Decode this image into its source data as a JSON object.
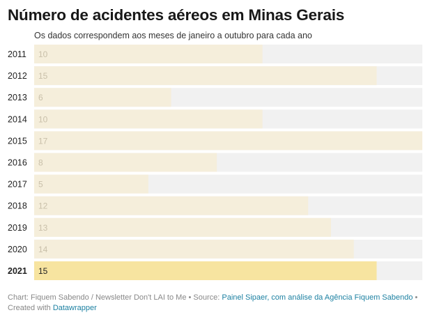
{
  "title": "Número de acidentes aéreos em Minas Gerais",
  "subtitle": "Os dados correspondem aos meses de janeiro a outubro para cada ano",
  "colors": {
    "track": "#f1f1f1",
    "bar": "#f5eedb",
    "bar_highlight": "#f7e4a0",
    "value_text": "#c9c0aa",
    "value_text_highlight": "#222222",
    "link": "#1d81a2"
  },
  "chart_data": {
    "type": "bar",
    "orientation": "horizontal",
    "categories": [
      "2011",
      "2012",
      "2013",
      "2014",
      "2015",
      "2016",
      "2017",
      "2018",
      "2019",
      "2020",
      "2021"
    ],
    "values": [
      10,
      15,
      6,
      10,
      17,
      8,
      5,
      12,
      13,
      14,
      15
    ],
    "highlight": "2021",
    "xlim": [
      0,
      17
    ]
  },
  "footer": {
    "prefix": "Chart: Fiquem Sabendo / Newsletter Don't LAI to Me • Source: ",
    "source_link": "Painel Sipaer, com análise da Agência Fiquem Sabendo",
    "middle": " • Created with ",
    "tool_link": "Datawrapper"
  }
}
